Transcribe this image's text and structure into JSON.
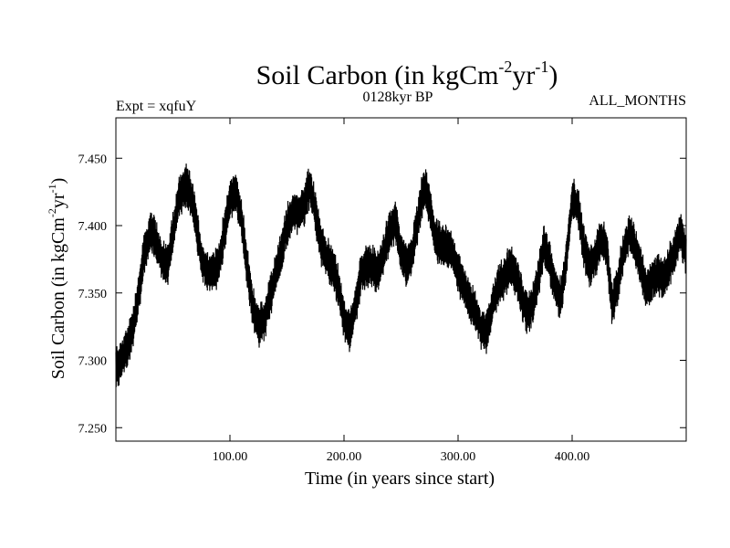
{
  "chart_data": {
    "type": "line",
    "title": {
      "main": "Soil Carbon (in kgCm",
      "sup1": "-2",
      "mid": "yr",
      "sup2": "-1",
      "end": ")"
    },
    "subtitle_left": "Expt = xqfuY",
    "subtitle_center": "0128kyr BP",
    "subtitle_right": "ALL_MONTHS",
    "xlabel": "Time (in years since start)",
    "ylabel": {
      "main": "Soil Carbon (in kgCm",
      "sup1": "-2",
      "mid": "yr",
      "sup2": "-1",
      "end": ")"
    },
    "xlim": [
      0,
      500
    ],
    "ylim": [
      7.24,
      7.48
    ],
    "x_ticks": [
      100,
      200,
      300,
      400
    ],
    "x_tick_labels": [
      "100.00",
      "200.00",
      "300.00",
      "400.00"
    ],
    "y_ticks": [
      7.25,
      7.3,
      7.35,
      7.4,
      7.45
    ],
    "y_tick_labels": [
      "7.250",
      "7.300",
      "7.350",
      "7.400",
      "7.450"
    ],
    "grid": false,
    "line_color": "#000000",
    "series": [
      {
        "x": [
          0,
          5,
          10,
          15,
          20,
          25,
          30,
          35,
          40,
          45,
          50,
          55,
          60,
          65,
          70,
          75,
          80,
          85,
          90,
          95,
          100,
          105,
          110,
          115,
          120,
          125,
          130,
          135,
          140,
          145,
          150,
          155,
          160,
          165,
          170,
          175,
          180,
          185,
          190,
          195,
          200,
          205,
          210,
          215,
          220,
          225,
          230,
          235,
          240,
          245,
          250,
          255,
          260,
          265,
          270,
          275,
          280,
          285,
          290,
          295,
          300,
          305,
          310,
          315,
          320,
          325,
          330,
          335,
          340,
          345,
          350,
          355,
          360,
          365,
          370,
          375,
          380,
          385,
          390,
          395,
          400,
          405,
          410,
          415,
          420,
          425,
          430,
          435,
          440,
          445,
          450,
          455,
          460,
          465,
          470,
          475,
          480,
          485,
          490,
          495,
          500
        ],
        "y": [
          7.295,
          7.3,
          7.31,
          7.325,
          7.35,
          7.38,
          7.395,
          7.39,
          7.375,
          7.37,
          7.395,
          7.42,
          7.43,
          7.425,
          7.405,
          7.375,
          7.365,
          7.365,
          7.37,
          7.395,
          7.42,
          7.425,
          7.405,
          7.37,
          7.34,
          7.325,
          7.33,
          7.345,
          7.365,
          7.38,
          7.4,
          7.41,
          7.41,
          7.415,
          7.43,
          7.41,
          7.385,
          7.375,
          7.37,
          7.355,
          7.33,
          7.32,
          7.34,
          7.365,
          7.37,
          7.37,
          7.365,
          7.38,
          7.395,
          7.405,
          7.38,
          7.37,
          7.38,
          7.405,
          7.43,
          7.415,
          7.39,
          7.385,
          7.385,
          7.38,
          7.365,
          7.355,
          7.345,
          7.335,
          7.325,
          7.32,
          7.34,
          7.355,
          7.36,
          7.37,
          7.365,
          7.35,
          7.335,
          7.34,
          7.36,
          7.385,
          7.375,
          7.355,
          7.345,
          7.375,
          7.42,
          7.415,
          7.385,
          7.37,
          7.375,
          7.39,
          7.385,
          7.34,
          7.355,
          7.38,
          7.395,
          7.385,
          7.37,
          7.35,
          7.36,
          7.365,
          7.36,
          7.37,
          7.38,
          7.395,
          7.38
        ]
      }
    ]
  }
}
